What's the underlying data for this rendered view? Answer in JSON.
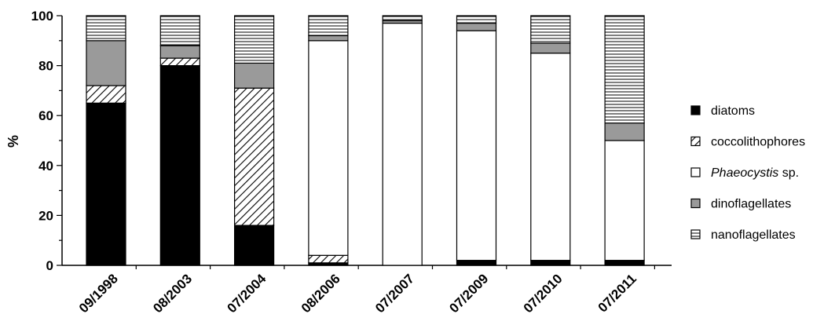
{
  "chart_data": {
    "type": "bar",
    "stacked": true,
    "ylabel": "%",
    "ylim": [
      0,
      100
    ],
    "yticks": [
      0,
      20,
      40,
      60,
      80,
      100
    ],
    "categories": [
      "09/1998",
      "08/2003",
      "07/2004",
      "08/2006",
      "07/2007",
      "07/2009",
      "07/2010",
      "07/2011"
    ],
    "series": [
      {
        "name": "diatoms",
        "fill": "solid",
        "values": [
          65,
          80,
          16,
          1,
          0,
          2,
          2,
          2
        ]
      },
      {
        "name": "coccolithophores",
        "fill": "diagonal-hatch",
        "values": [
          7,
          3,
          55,
          3,
          0,
          0,
          0,
          0
        ]
      },
      {
        "name": "sp.",
        "name_italic": "Phaeocystis",
        "fill": "white",
        "values": [
          0,
          0,
          0,
          86,
          97,
          92,
          83,
          48
        ]
      },
      {
        "name": "dinoflagellates",
        "fill": "gray",
        "values": [
          18,
          5,
          10,
          2,
          1,
          3,
          4,
          7
        ]
      },
      {
        "name": "nanoflagellates",
        "fill": "horizontal-hatch",
        "values": [
          10,
          12,
          19,
          8,
          2,
          3,
          11,
          43
        ]
      }
    ],
    "legend_position": "right",
    "grid": false
  }
}
